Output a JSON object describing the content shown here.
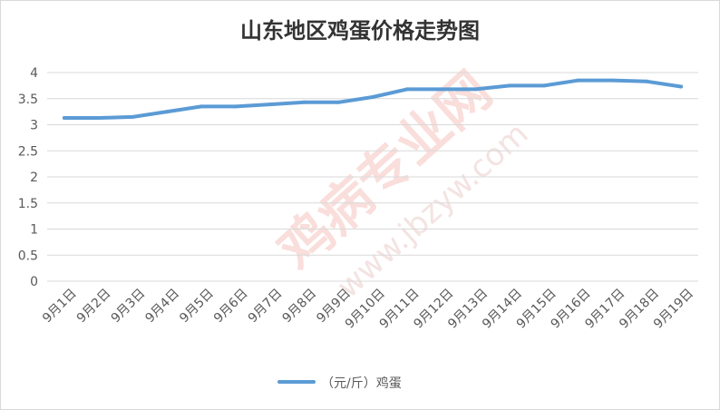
{
  "chart_data": {
    "type": "line",
    "title": "山东地区鸡蛋价格走势图",
    "categories": [
      "9月1日",
      "9月2日",
      "9月3日",
      "9月4日",
      "9月5日",
      "9月6日",
      "9月7日",
      "9月8日",
      "9月9日",
      "9月10日",
      "9月11日",
      "9月12日",
      "9月13日",
      "9月14日",
      "9月15日",
      "9月16日",
      "9月17日",
      "9月18日",
      "9月19日"
    ],
    "series": [
      {
        "name": "（元/斤）鸡蛋",
        "color": "#5b9bd5",
        "values": [
          3.13,
          3.13,
          3.15,
          3.25,
          3.35,
          3.35,
          3.39,
          3.43,
          3.43,
          3.53,
          3.68,
          3.68,
          3.68,
          3.75,
          3.75,
          3.85,
          3.85,
          3.83,
          3.73
        ]
      }
    ],
    "ylim": [
      0,
      4
    ],
    "yticks": [
      "0",
      "0.5",
      "1",
      "1.5",
      "2",
      "2.5",
      "3",
      "3.5",
      "4"
    ],
    "grid": true,
    "legend_position": "bottom"
  },
  "watermark": {
    "text": "鸡病专业网",
    "url": "www.jbzyw.com"
  }
}
